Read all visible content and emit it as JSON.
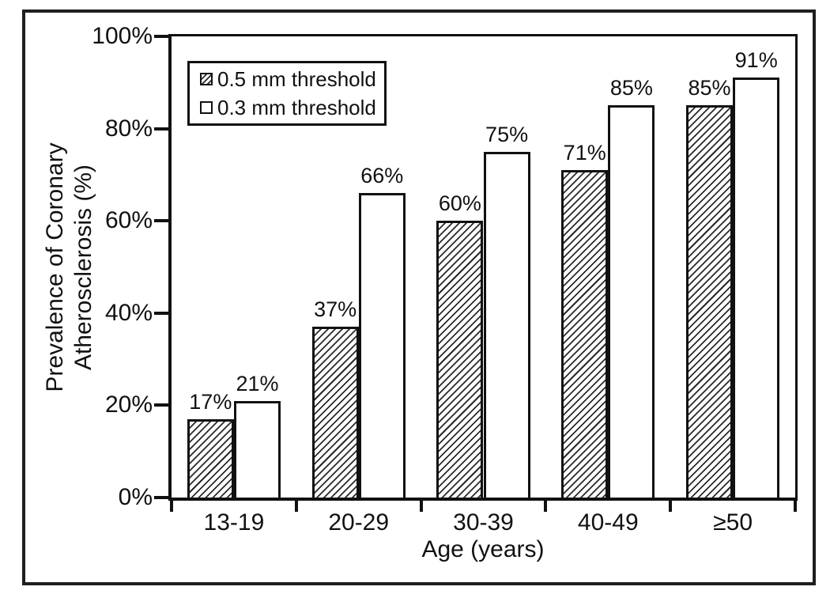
{
  "chart_data": {
    "type": "bar",
    "title": "",
    "categories": [
      "13-19",
      "20-29",
      "30-39",
      "40-49",
      "≥50"
    ],
    "series": [
      {
        "name": "0.5 mm threshold",
        "style": "hatched",
        "values": [
          17,
          37,
          60,
          71,
          85
        ],
        "labels": [
          "17%",
          "37%",
          "60%",
          "71%",
          "85%"
        ]
      },
      {
        "name": "0.3 mm threshold",
        "style": "plain",
        "values": [
          21,
          66,
          75,
          85,
          91
        ],
        "labels": [
          "21%",
          "66%",
          "75%",
          "85%",
          "91%"
        ]
      }
    ],
    "xlabel": "Age (years)",
    "ylabel_line1": "Prevalence of Coronary",
    "ylabel_line2": "Atherosclerosis (%)",
    "y_ticks": [
      "0%",
      "20%",
      "40%",
      "60%",
      "80%",
      "100%"
    ],
    "ylim": [
      0,
      100
    ],
    "grid": false,
    "legend_position": "top-left-inside",
    "colors": {
      "ink": "#111111",
      "background": "#ffffff"
    }
  }
}
